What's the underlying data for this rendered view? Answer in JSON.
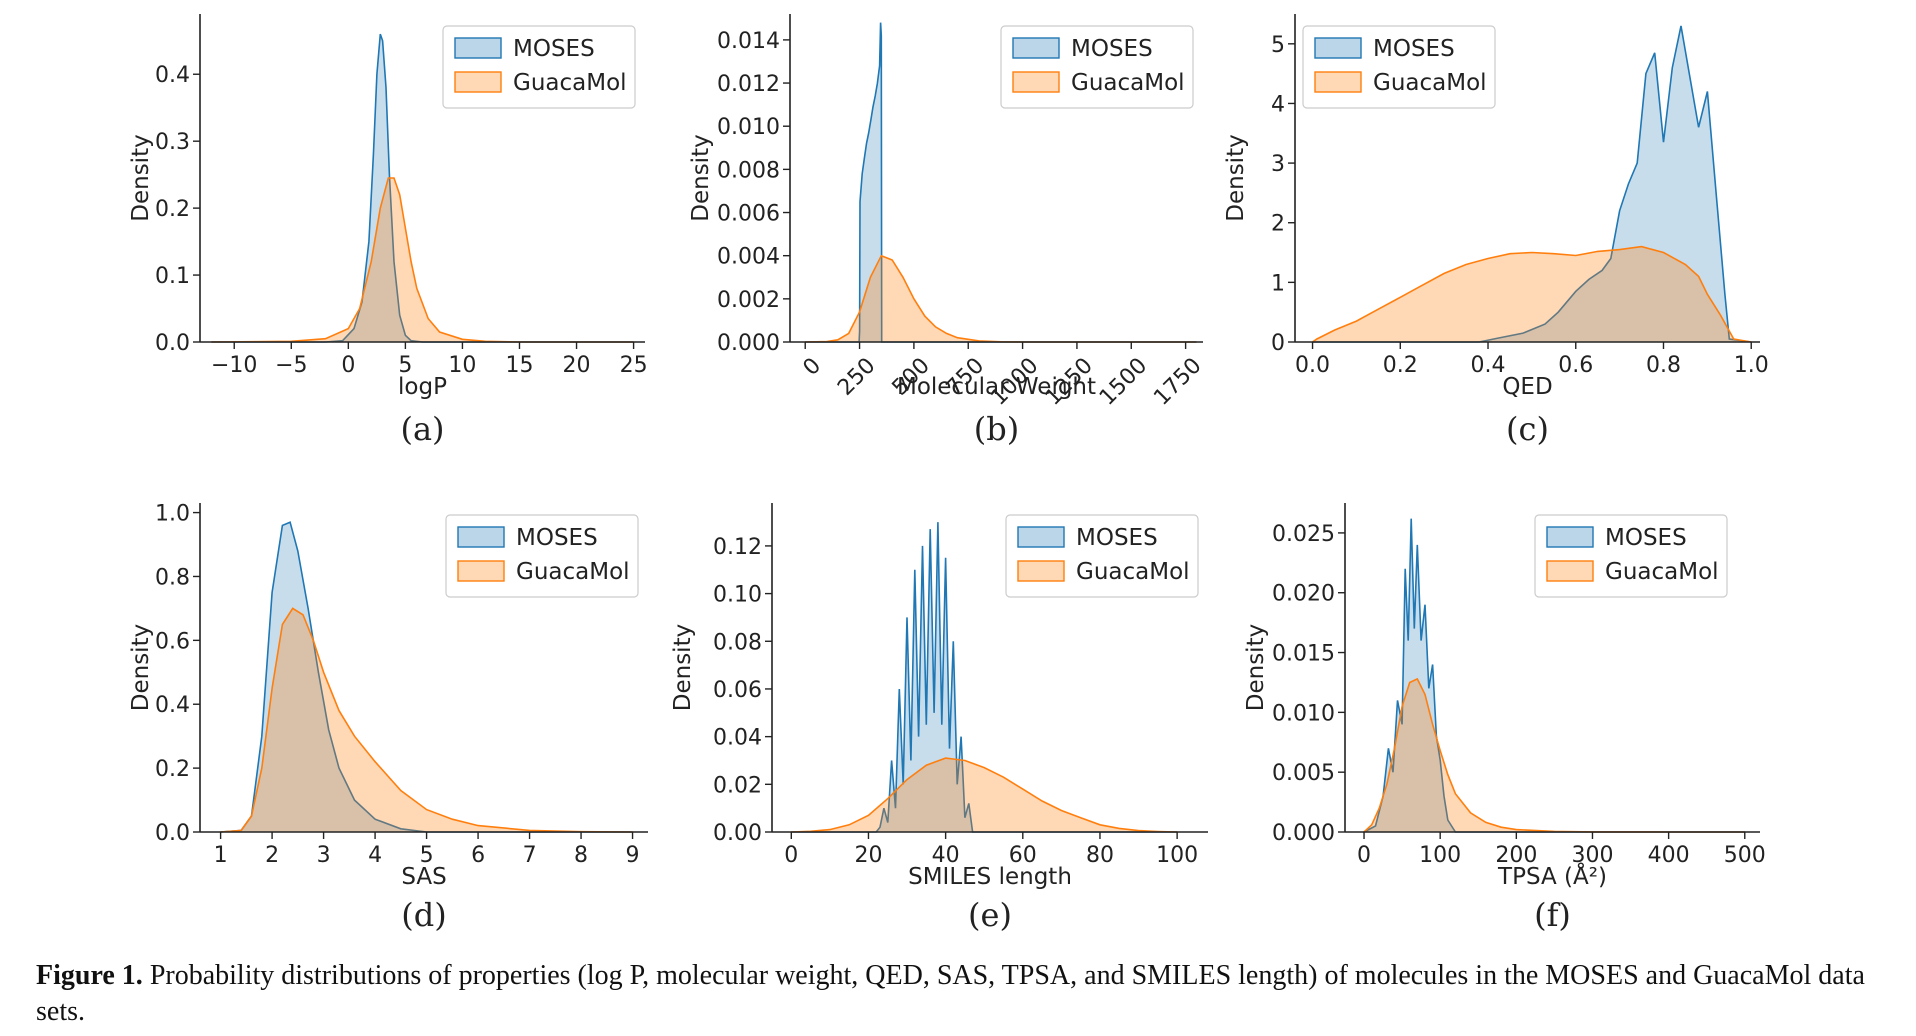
{
  "caption": {
    "label": "Figure 1.",
    "text": "Probability distributions of properties (log P, molecular weight, QED, SAS, TPSA, and SMILES length) of molecules in the MOSES and GuacaMol data sets."
  },
  "colors": {
    "moses": "#1f77b4",
    "guacamol": "#ff7f0e"
  },
  "chart_data": [
    {
      "type": "area",
      "sublabel": "(a)",
      "xlabel": "logP",
      "ylabel": "Density",
      "xlim": [
        -13,
        26
      ],
      "ylim": [
        0,
        0.49
      ],
      "xticks": [
        -10,
        -5,
        0,
        5,
        10,
        15,
        20,
        25
      ],
      "xtick_labels": [
        "−10",
        "−5",
        "0",
        "5",
        "10",
        "15",
        "20",
        "25"
      ],
      "xtick_rotation": 0,
      "yticks": [
        0.0,
        0.1,
        0.2,
        0.3,
        0.4
      ],
      "ytick_labels": [
        "0.0",
        "0.1",
        "0.2",
        "0.3",
        "0.4"
      ],
      "legend": [
        "MOSES",
        "GuacaMol"
      ],
      "series": [
        {
          "name": "MOSES",
          "x": [
            -12,
            -2,
            -0.5,
            0.5,
            1.2,
            1.8,
            2.2,
            2.5,
            2.8,
            3.0,
            3.3,
            3.6,
            4.0,
            4.5,
            5.0,
            5.5,
            6.5,
            8,
            25
          ],
          "y": [
            0,
            0,
            0.002,
            0.02,
            0.06,
            0.15,
            0.28,
            0.4,
            0.46,
            0.45,
            0.38,
            0.25,
            0.12,
            0.04,
            0.01,
            0.002,
            0,
            0,
            0
          ]
        },
        {
          "name": "GuacaMol",
          "x": [
            -12,
            -5,
            -2,
            0,
            1,
            2,
            2.8,
            3.5,
            4.0,
            4.5,
            5.0,
            5.5,
            6.0,
            7.0,
            8.0,
            10,
            12,
            15,
            25
          ],
          "y": [
            0,
            0.001,
            0.005,
            0.02,
            0.05,
            0.12,
            0.2,
            0.245,
            0.245,
            0.22,
            0.17,
            0.12,
            0.08,
            0.035,
            0.015,
            0.004,
            0.001,
            0,
            0
          ]
        }
      ]
    },
    {
      "type": "area",
      "sublabel": "(b)",
      "xlabel": "Molecular Weight",
      "ylabel": "Density",
      "xlim": [
        -70,
        1830
      ],
      "ylim": [
        0,
        0.0152
      ],
      "xticks": [
        0,
        250,
        500,
        750,
        1000,
        1250,
        1500,
        1750
      ],
      "xtick_labels": [
        "0",
        "250",
        "500",
        "750",
        "1000",
        "1250",
        "1500",
        "1750"
      ],
      "xtick_rotation": -45,
      "yticks": [
        0.0,
        0.002,
        0.004,
        0.006,
        0.008,
        0.01,
        0.012,
        0.014
      ],
      "ytick_labels": [
        "0.000",
        "0.002",
        "0.004",
        "0.006",
        "0.008",
        "0.010",
        "0.012",
        "0.014"
      ],
      "legend": [
        "MOSES",
        "GuacaMol"
      ],
      "series": [
        {
          "name": "MOSES",
          "x": [
            0,
            248,
            250,
            252,
            262,
            272,
            282,
            292,
            302,
            312,
            322,
            332,
            342,
            347,
            350,
            352,
            1800
          ],
          "y": [
            0,
            0,
            0.0005,
            0.0065,
            0.0078,
            0.0085,
            0.0092,
            0.0097,
            0.0103,
            0.0109,
            0.0114,
            0.012,
            0.0128,
            0.0148,
            0.0142,
            0,
            0
          ]
        },
        {
          "name": "GuacaMol",
          "x": [
            0,
            100,
            150,
            200,
            250,
            300,
            350,
            400,
            450,
            500,
            550,
            600,
            650,
            700,
            800,
            900,
            1000,
            1800
          ],
          "y": [
            0,
            2e-05,
            0.0001,
            0.0004,
            0.0014,
            0.003,
            0.004,
            0.0038,
            0.003,
            0.002,
            0.0012,
            0.0007,
            0.0004,
            0.0002,
            5e-05,
            1e-05,
            0,
            0
          ]
        }
      ]
    },
    {
      "type": "area",
      "sublabel": "(c)",
      "xlabel": "QED",
      "ylabel": "Density",
      "xlim": [
        -0.04,
        1.02
      ],
      "ylim": [
        0,
        5.5
      ],
      "xticks": [
        0.0,
        0.2,
        0.4,
        0.6,
        0.8,
        1.0
      ],
      "xtick_labels": [
        "0.0",
        "0.2",
        "0.4",
        "0.6",
        "0.8",
        "1.0"
      ],
      "xtick_rotation": 0,
      "yticks": [
        0,
        1,
        2,
        3,
        4,
        5
      ],
      "ytick_labels": [
        "0",
        "1",
        "2",
        "3",
        "4",
        "5"
      ],
      "legend": [
        "MOSES",
        "GuacaMol"
      ],
      "series": [
        {
          "name": "MOSES",
          "x": [
            0,
            0.38,
            0.42,
            0.48,
            0.53,
            0.56,
            0.6,
            0.63,
            0.66,
            0.68,
            0.7,
            0.72,
            0.74,
            0.76,
            0.78,
            0.8,
            0.82,
            0.84,
            0.86,
            0.88,
            0.9,
            0.92,
            0.94,
            0.95,
            1.0
          ],
          "y": [
            0,
            0,
            0.06,
            0.15,
            0.3,
            0.5,
            0.85,
            1.05,
            1.2,
            1.4,
            2.2,
            2.65,
            3.0,
            4.5,
            4.85,
            3.35,
            4.6,
            5.3,
            4.45,
            3.6,
            4.2,
            2.5,
            0.8,
            0.05,
            0
          ]
        },
        {
          "name": "GuacaMol",
          "x": [
            0,
            0.01,
            0.05,
            0.1,
            0.15,
            0.2,
            0.25,
            0.3,
            0.35,
            0.4,
            0.45,
            0.5,
            0.55,
            0.6,
            0.65,
            0.7,
            0.75,
            0.8,
            0.85,
            0.88,
            0.9,
            0.93,
            0.96,
            1.0
          ],
          "y": [
            0,
            0.05,
            0.2,
            0.35,
            0.55,
            0.75,
            0.95,
            1.15,
            1.3,
            1.4,
            1.48,
            1.5,
            1.48,
            1.45,
            1.52,
            1.55,
            1.6,
            1.5,
            1.3,
            1.1,
            0.8,
            0.45,
            0.05,
            0
          ]
        }
      ]
    },
    {
      "type": "area",
      "sublabel": "(d)",
      "xlabel": "SAS",
      "ylabel": "Density",
      "xlim": [
        0.6,
        9.3
      ],
      "ylim": [
        0,
        1.03
      ],
      "xticks": [
        1,
        2,
        3,
        4,
        5,
        6,
        7,
        8,
        9
      ],
      "xtick_labels": [
        "1",
        "2",
        "3",
        "4",
        "5",
        "6",
        "7",
        "8",
        "9"
      ],
      "xtick_rotation": 0,
      "yticks": [
        0.0,
        0.2,
        0.4,
        0.6,
        0.8,
        1.0
      ],
      "ytick_labels": [
        "0.0",
        "0.2",
        "0.4",
        "0.6",
        "0.8",
        "1.0"
      ],
      "legend": [
        "MOSES",
        "GuacaMol"
      ],
      "series": [
        {
          "name": "MOSES",
          "x": [
            1,
            1.4,
            1.6,
            1.8,
            2.0,
            2.2,
            2.35,
            2.5,
            2.7,
            2.9,
            3.1,
            3.3,
            3.6,
            4.0,
            4.5,
            5.0,
            9
          ],
          "y": [
            0,
            0.005,
            0.05,
            0.3,
            0.75,
            0.96,
            0.97,
            0.88,
            0.7,
            0.5,
            0.32,
            0.2,
            0.1,
            0.04,
            0.01,
            0,
            0
          ]
        },
        {
          "name": "GuacaMol",
          "x": [
            1,
            1.4,
            1.6,
            1.8,
            2.0,
            2.2,
            2.4,
            2.6,
            2.8,
            3.0,
            3.3,
            3.6,
            4.0,
            4.5,
            5.0,
            5.5,
            6.0,
            7.0,
            8.0,
            9.0
          ],
          "y": [
            0,
            0.005,
            0.05,
            0.2,
            0.45,
            0.65,
            0.7,
            0.68,
            0.6,
            0.5,
            0.38,
            0.3,
            0.22,
            0.13,
            0.07,
            0.04,
            0.02,
            0.005,
            0.001,
            0
          ]
        }
      ]
    },
    {
      "type": "area",
      "sublabel": "(e)",
      "xlabel": "SMILES length",
      "ylabel": "Density",
      "xlim": [
        -5,
        108
      ],
      "ylim": [
        0,
        0.138
      ],
      "xticks": [
        0,
        20,
        40,
        60,
        80,
        100
      ],
      "xtick_labels": [
        "0",
        "20",
        "40",
        "60",
        "80",
        "100"
      ],
      "xtick_rotation": 0,
      "yticks": [
        0.0,
        0.02,
        0.04,
        0.06,
        0.08,
        0.1,
        0.12
      ],
      "ytick_labels": [
        "0.00",
        "0.02",
        "0.04",
        "0.06",
        "0.08",
        "0.10",
        "0.12"
      ],
      "legend": [
        "MOSES",
        "GuacaMol"
      ],
      "series": [
        {
          "name": "MOSES",
          "x": [
            0,
            22,
            23,
            24,
            25,
            26,
            27,
            28,
            29,
            30,
            31,
            32,
            33,
            34,
            35,
            36,
            37,
            38,
            39,
            40,
            41,
            42,
            43,
            44,
            45,
            46,
            47,
            100
          ],
          "y": [
            0,
            0,
            0.002,
            0.01,
            0.004,
            0.03,
            0.01,
            0.06,
            0.02,
            0.09,
            0.03,
            0.11,
            0.04,
            0.12,
            0.045,
            0.127,
            0.05,
            0.13,
            0.045,
            0.115,
            0.035,
            0.08,
            0.02,
            0.04,
            0.006,
            0.012,
            0,
            0
          ]
        },
        {
          "name": "GuacaMol",
          "x": [
            0,
            5,
            10,
            15,
            20,
            25,
            30,
            35,
            40,
            45,
            50,
            55,
            60,
            65,
            70,
            75,
            80,
            85,
            90,
            95,
            100
          ],
          "y": [
            0,
            0.0003,
            0.001,
            0.003,
            0.007,
            0.014,
            0.022,
            0.028,
            0.031,
            0.03,
            0.027,
            0.023,
            0.018,
            0.013,
            0.009,
            0.006,
            0.003,
            0.0015,
            0.0006,
            0.0002,
            0
          ]
        }
      ]
    },
    {
      "type": "area",
      "sublabel": "(f)",
      "xlabel": "TPSA (Å²)",
      "ylabel": "Density",
      "xlim": [
        -25,
        520
      ],
      "ylim": [
        0,
        0.0275
      ],
      "xticks": [
        0,
        100,
        200,
        300,
        400,
        500
      ],
      "xtick_labels": [
        "0",
        "100",
        "200",
        "300",
        "400",
        "500"
      ],
      "xtick_rotation": 0,
      "yticks": [
        0.0,
        0.005,
        0.01,
        0.015,
        0.02,
        0.025
      ],
      "ytick_labels": [
        "0.000",
        "0.005",
        "0.010",
        "0.015",
        "0.020",
        "0.025"
      ],
      "legend": [
        "MOSES",
        "GuacaMol"
      ],
      "series": [
        {
          "name": "MOSES",
          "x": [
            0,
            15,
            25,
            32,
            38,
            44,
            50,
            54,
            58,
            62,
            66,
            70,
            75,
            80,
            85,
            90,
            95,
            100,
            105,
            110,
            120,
            500
          ],
          "y": [
            0,
            0.0005,
            0.003,
            0.007,
            0.005,
            0.011,
            0.009,
            0.022,
            0.016,
            0.0262,
            0.017,
            0.024,
            0.016,
            0.019,
            0.012,
            0.014,
            0.008,
            0.006,
            0.003,
            0.001,
            0,
            0
          ]
        },
        {
          "name": "GuacaMol",
          "x": [
            0,
            10,
            20,
            30,
            40,
            50,
            60,
            70,
            80,
            90,
            100,
            110,
            120,
            140,
            160,
            180,
            200,
            250,
            300,
            400,
            500
          ],
          "y": [
            0,
            0.0006,
            0.002,
            0.004,
            0.007,
            0.0105,
            0.0125,
            0.0128,
            0.0115,
            0.009,
            0.0068,
            0.0048,
            0.0032,
            0.0016,
            0.0008,
            0.0004,
            0.0002,
            5e-05,
            1e-05,
            0,
            0
          ]
        }
      ]
    }
  ]
}
